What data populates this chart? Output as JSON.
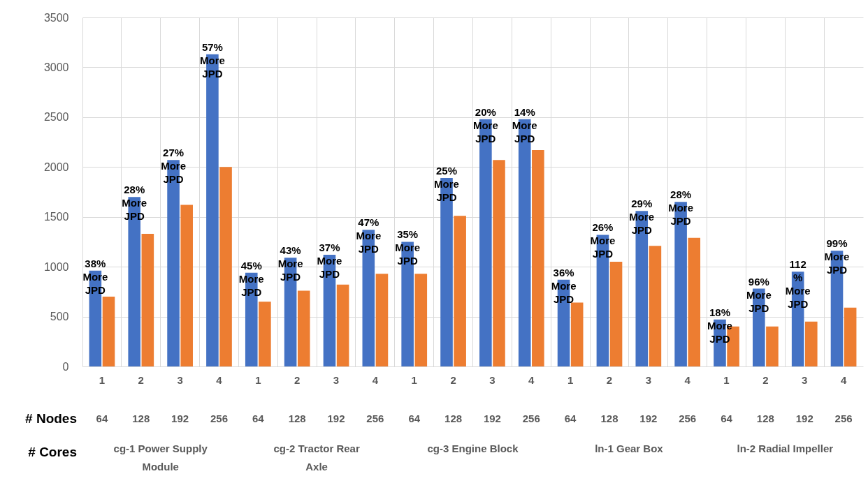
{
  "chart_data": {
    "type": "bar",
    "categories": [
      "1",
      "2",
      "3",
      "4",
      "1",
      "2",
      "3",
      "4",
      "1",
      "2",
      "3",
      "4",
      "1",
      "2",
      "3",
      "4",
      "1",
      "2",
      "3",
      "4"
    ],
    "series": [
      {
        "color": "#4472c4",
        "values": [
          960,
          1700,
          2070,
          3130,
          940,
          1090,
          1120,
          1370,
          1250,
          1890,
          2480,
          2480,
          870,
          1320,
          1560,
          1650,
          470,
          780,
          950,
          1160
        ]
      },
      {
        "color": "#ed7d31",
        "values": [
          700,
          1330,
          1620,
          2000,
          650,
          760,
          820,
          930,
          930,
          1510,
          2070,
          2170,
          640,
          1050,
          1210,
          1290,
          400,
          400,
          450,
          590
        ]
      }
    ],
    "ylim": [
      0,
      3500
    ],
    "yticks": [
      0,
      500,
      1000,
      1500,
      2000,
      2500,
      3000,
      3500
    ],
    "grid": true,
    "annotations": [
      "# Nodes",
      "# Cores",
      "64",
      "128",
      "192",
      "256",
      "64",
      "128",
      "192",
      "256",
      "64",
      "128",
      "192",
      "256",
      "64",
      "128",
      "192",
      "256",
      "64",
      "128",
      "192",
      "256",
      "cg-1 Power Supply Module",
      "cg-2 Tractor Rear Axle",
      "cg-3 Engine Block",
      "ln-1 Gear Box",
      "ln-2 Radial Impeller",
      "38% More JPD",
      "28% More JPD",
      "27% More JPD",
      "57% More JPD",
      "45% More JPD",
      "43% More JPD",
      "37% More JPD",
      "47% More JPD",
      "35% More JPD",
      "25% More JPD",
      "20% More JPD",
      "14% More JPD",
      "36% More JPD",
      "26% More JPD",
      "29% More JPD",
      "28% More JPD",
      "18% More JPD",
      "96% More JPD",
      "112 % More JPD",
      "99% More JPD"
    ]
  }
}
